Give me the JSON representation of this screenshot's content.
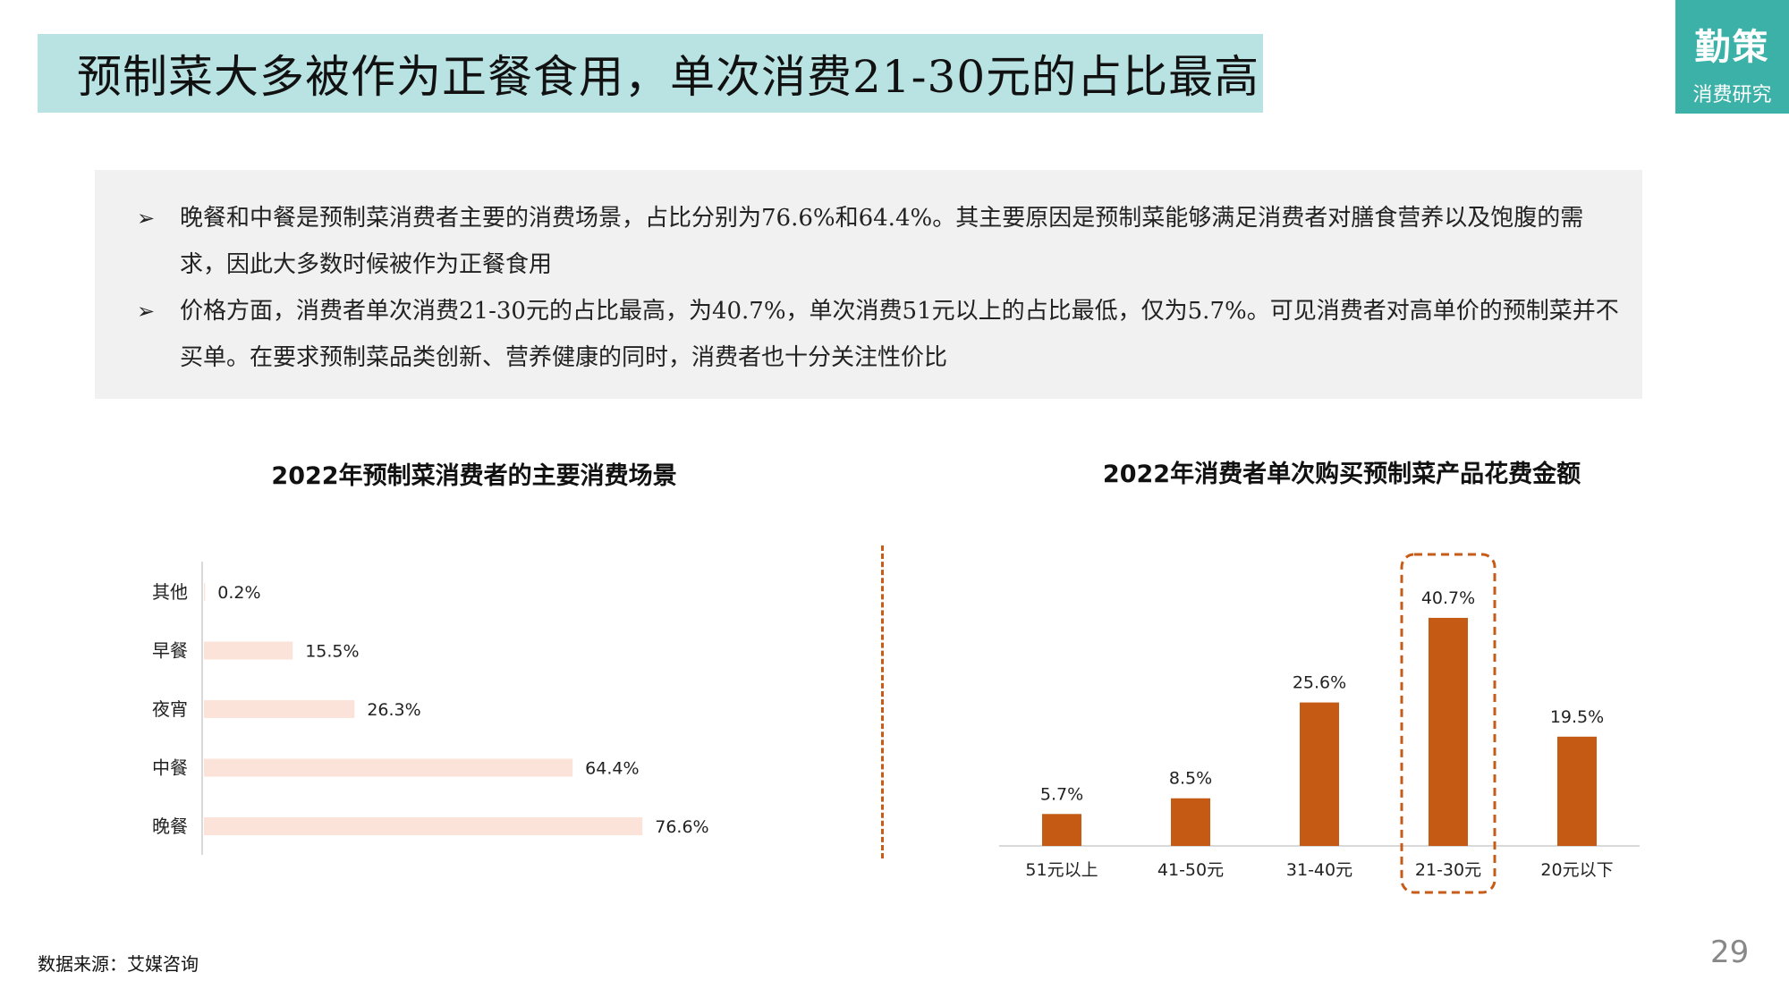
{
  "header": {
    "title": "预制菜大多被作为正餐食用，单次消费21-30元的占比最高",
    "logo_main": "勤策",
    "logo_sub": "消费研究"
  },
  "summary": {
    "bullets": [
      {
        "marker": "➢",
        "text": "晚餐和中餐是预制菜消费者主要的消费场景，占比分别为76.6%和64.4%。其主要原因是预制菜能够满足消费者对膳食营养以及饱腹的需求，因此大多数时候被作为正餐食用"
      },
      {
        "marker": "➢",
        "text": "价格方面，消费者单次消费21-30元的占比最高，为40.7%，单次消费51元以上的占比最低，仅为5.7%。可见消费者对高单价的预制菜并不买单。在要求预制菜品类创新、营养健康的同时，消费者也十分关注性价比"
      }
    ]
  },
  "chart_data": [
    {
      "type": "bar",
      "orientation": "horizontal",
      "title": "2022年预制菜消费者的主要消费场景",
      "categories": [
        "其他",
        "早餐",
        "夜宵",
        "中餐",
        "晚餐"
      ],
      "values": [
        0.2,
        15.5,
        26.3,
        64.4,
        76.6
      ],
      "labels": [
        "0.2%",
        "15.5%",
        "26.3%",
        "64.4%",
        "76.6%"
      ],
      "unit": "%",
      "xlim": [
        0,
        100
      ],
      "color": "#fbe3d9",
      "grid": false
    },
    {
      "type": "bar",
      "orientation": "vertical",
      "title": "2022年消费者单次购买预制菜产品花费金额",
      "categories": [
        "51元以上",
        "41-50元",
        "31-40元",
        "21-30元",
        "20元以下"
      ],
      "values": [
        5.7,
        8.5,
        25.6,
        40.7,
        19.5
      ],
      "labels": [
        "5.7%",
        "8.5%",
        "25.6%",
        "40.7%",
        "19.5%"
      ],
      "unit": "%",
      "ylim": [
        0,
        45
      ],
      "color": "#c45a13",
      "highlight_index": 3,
      "highlight_color": "#c75b19",
      "grid": false
    }
  ],
  "footer": {
    "source": "数据来源：艾媒咨询",
    "page_number": "29"
  }
}
